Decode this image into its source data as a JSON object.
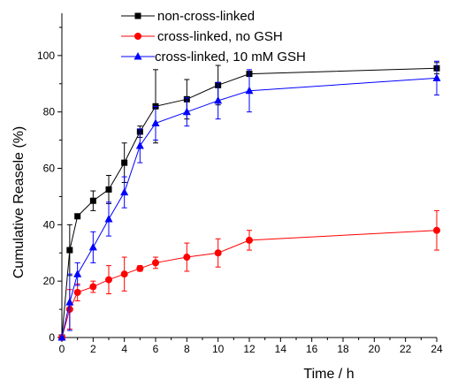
{
  "chart_data": {
    "type": "line",
    "title": "",
    "xlabel": "Time / h",
    "ylabel": "Cumulative Reasele (%)",
    "xlim": [
      0,
      24
    ],
    "ylim": [
      0,
      115
    ],
    "x_ticks": [
      0,
      2,
      4,
      6,
      8,
      10,
      12,
      14,
      16,
      18,
      20,
      22,
      24
    ],
    "y_ticks": [
      0,
      20,
      40,
      60,
      80,
      100
    ],
    "grid": false,
    "legend_position": "top-center",
    "error_bars": true,
    "series": [
      {
        "name": "non-cross-linked",
        "color": "#000000",
        "marker": "square",
        "x": [
          0,
          0.5,
          1,
          2,
          3,
          4,
          5,
          6,
          8,
          10,
          12,
          24
        ],
        "y": [
          0,
          31,
          43,
          48.5,
          52.5,
          62,
          73,
          82,
          84.5,
          89.5,
          93.5,
          95.5
        ],
        "err": [
          0,
          9,
          0,
          3.5,
          5,
          7,
          2,
          13,
          7,
          7,
          0,
          2
        ]
      },
      {
        "name": "cross-linked, no GSH",
        "color": "#ff0000",
        "marker": "circle",
        "x": [
          0,
          0.5,
          1,
          2,
          3,
          4,
          5,
          6,
          8,
          10,
          12,
          24
        ],
        "y": [
          0,
          10,
          16,
          18,
          20.5,
          22.5,
          24.5,
          26.5,
          28.5,
          30,
          34.5,
          38
        ],
        "err": [
          0,
          7,
          3,
          2,
          5,
          6,
          1,
          2,
          5,
          5,
          3.5,
          7
        ]
      },
      {
        "name": "cross-linked, 10 mM GSH",
        "color": "#0000ff",
        "marker": "triangle",
        "x": [
          0,
          0.5,
          1,
          2,
          3,
          4,
          5,
          6,
          8,
          10,
          12,
          24
        ],
        "y": [
          0,
          12.5,
          22.5,
          32,
          42,
          51.5,
          68,
          76,
          80,
          84,
          87.5,
          92
        ],
        "err": [
          0,
          10,
          4,
          5.5,
          6,
          5.5,
          6,
          6,
          5,
          6.5,
          7.5,
          6
        ]
      }
    ]
  }
}
